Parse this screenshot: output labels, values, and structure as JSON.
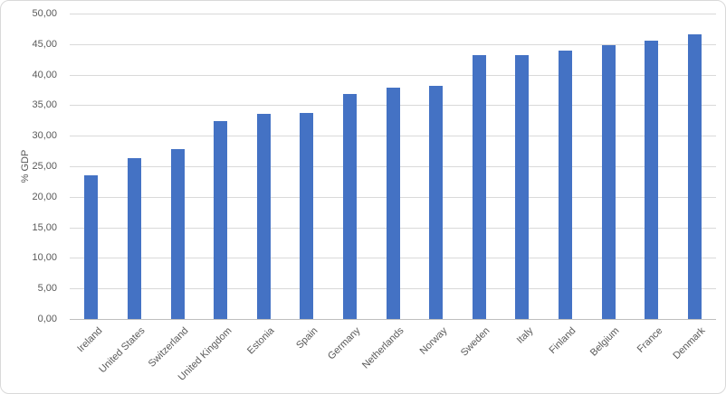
{
  "chart_data": {
    "type": "bar",
    "title": "",
    "xlabel": "",
    "ylabel": "% GDP",
    "categories": [
      "Ireland",
      "United States",
      "Switzerland",
      "United Kingdom",
      "Estonia",
      "Spain",
      "Germany",
      "Netherlands",
      "Norway",
      "Sweden",
      "Italy",
      "Finland",
      "Belgium",
      "France",
      "Denmark"
    ],
    "values": [
      23.5,
      26.3,
      27.8,
      32.4,
      33.6,
      33.8,
      36.9,
      37.8,
      38.1,
      43.2,
      43.2,
      44.0,
      44.8,
      45.5,
      46.6
    ],
    "ylim": [
      0,
      50
    ],
    "ytick_step": 5,
    "ytick_labels": [
      "0,00",
      "5,00",
      "10,00",
      "15,00",
      "20,00",
      "25,00",
      "30,00",
      "35,00",
      "40,00",
      "45,00",
      "50,00"
    ],
    "xtick_rotation_deg": 45,
    "grid": "horizontal",
    "legend": "none",
    "colors": {
      "bar_fill": "#4472C4",
      "gridline": "#D9D9D9",
      "axis_line": "#BFBFBF",
      "tick_label_text": "#595959",
      "chart_border": "#D9D9D9",
      "background": "#FFFFFF"
    }
  }
}
